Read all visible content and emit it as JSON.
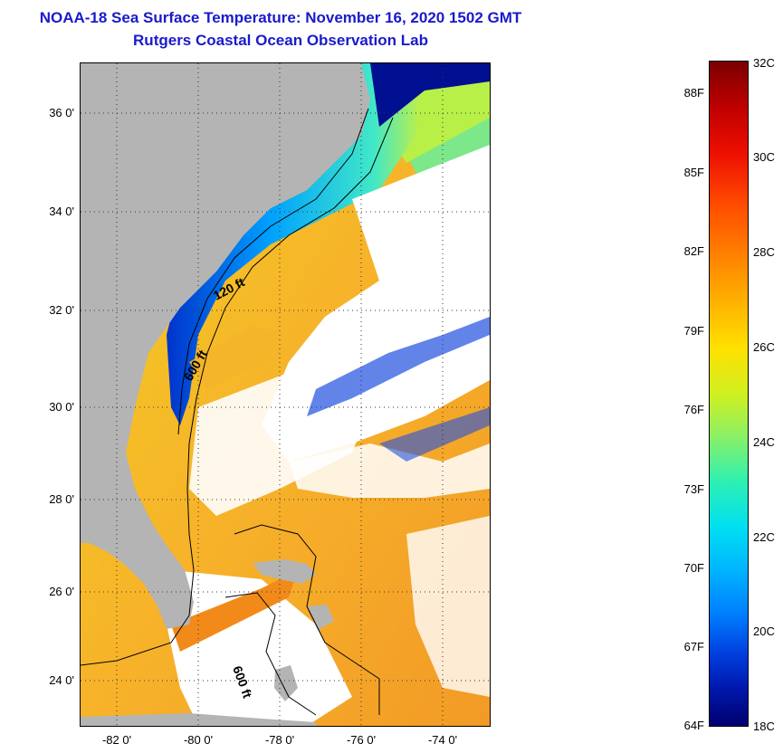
{
  "header": {
    "title": "NOAA-18 Sea Surface Temperature:  November 16, 2020 1502 GMT",
    "subtitle": "Rutgers Coastal Ocean Observation Lab"
  },
  "map": {
    "lat_labels": [
      "36 0'",
      "34 0'",
      "32 0'",
      "30 0'",
      "28 0'",
      "26 0'",
      "24 0'"
    ],
    "lon_labels": [
      "-82 0'",
      "-80 0'",
      "-78 0'",
      "-76 0'",
      "-74 0'"
    ],
    "contours": [
      "120 ft",
      "600 ft",
      "600 ft"
    ],
    "colors": {
      "land": "#b4b4b4",
      "cloud": "#ffffff",
      "warm": "#f5a623",
      "cool": "#00a8ff"
    }
  },
  "colorbar": {
    "fahrenheit": [
      "88F",
      "85F",
      "82F",
      "79F",
      "76F",
      "73F",
      "70F",
      "67F",
      "64F"
    ],
    "celsius": [
      "32C",
      "30C",
      "28C",
      "26C",
      "24C",
      "22C",
      "20C",
      "18C"
    ]
  }
}
